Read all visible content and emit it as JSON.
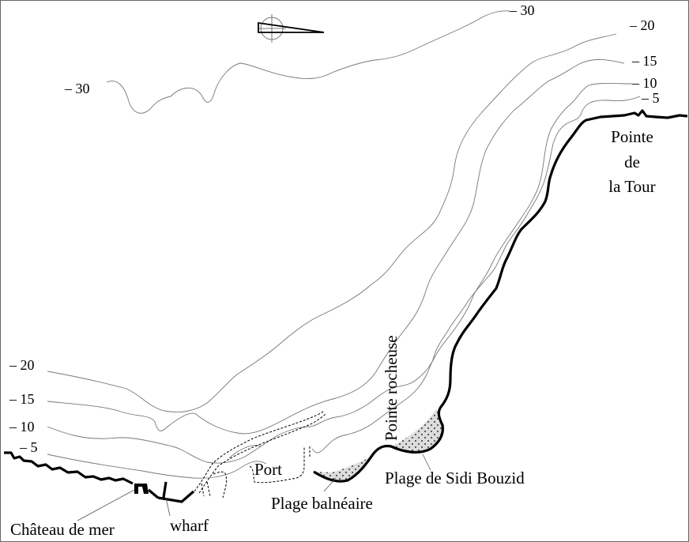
{
  "map": {
    "depth_labels_right": [
      "– 30",
      "– 20",
      "– 15",
      "– 10",
      "– 5"
    ],
    "depth_labels_left": [
      "– 30",
      "– 20",
      "– 15",
      "– 10",
      "– 5"
    ],
    "places": {
      "pointe_de_la_tour": [
        "Pointe",
        "de",
        "la Tour"
      ],
      "pointe_rocheuse": "Pointe rocheuse",
      "port": "Port",
      "plage_sidi_bouzid": "Plage de Sidi Bouzid",
      "plage_balneaire": "Plage balnéaire",
      "chateau_de_mer": "Château de mer",
      "wharf": "wharf"
    },
    "icons": {
      "north_arrow": "compass-north-arrow-icon"
    },
    "colors": {
      "coast": "#000000",
      "contour": "#777777",
      "beach": "#dddddd"
    }
  }
}
